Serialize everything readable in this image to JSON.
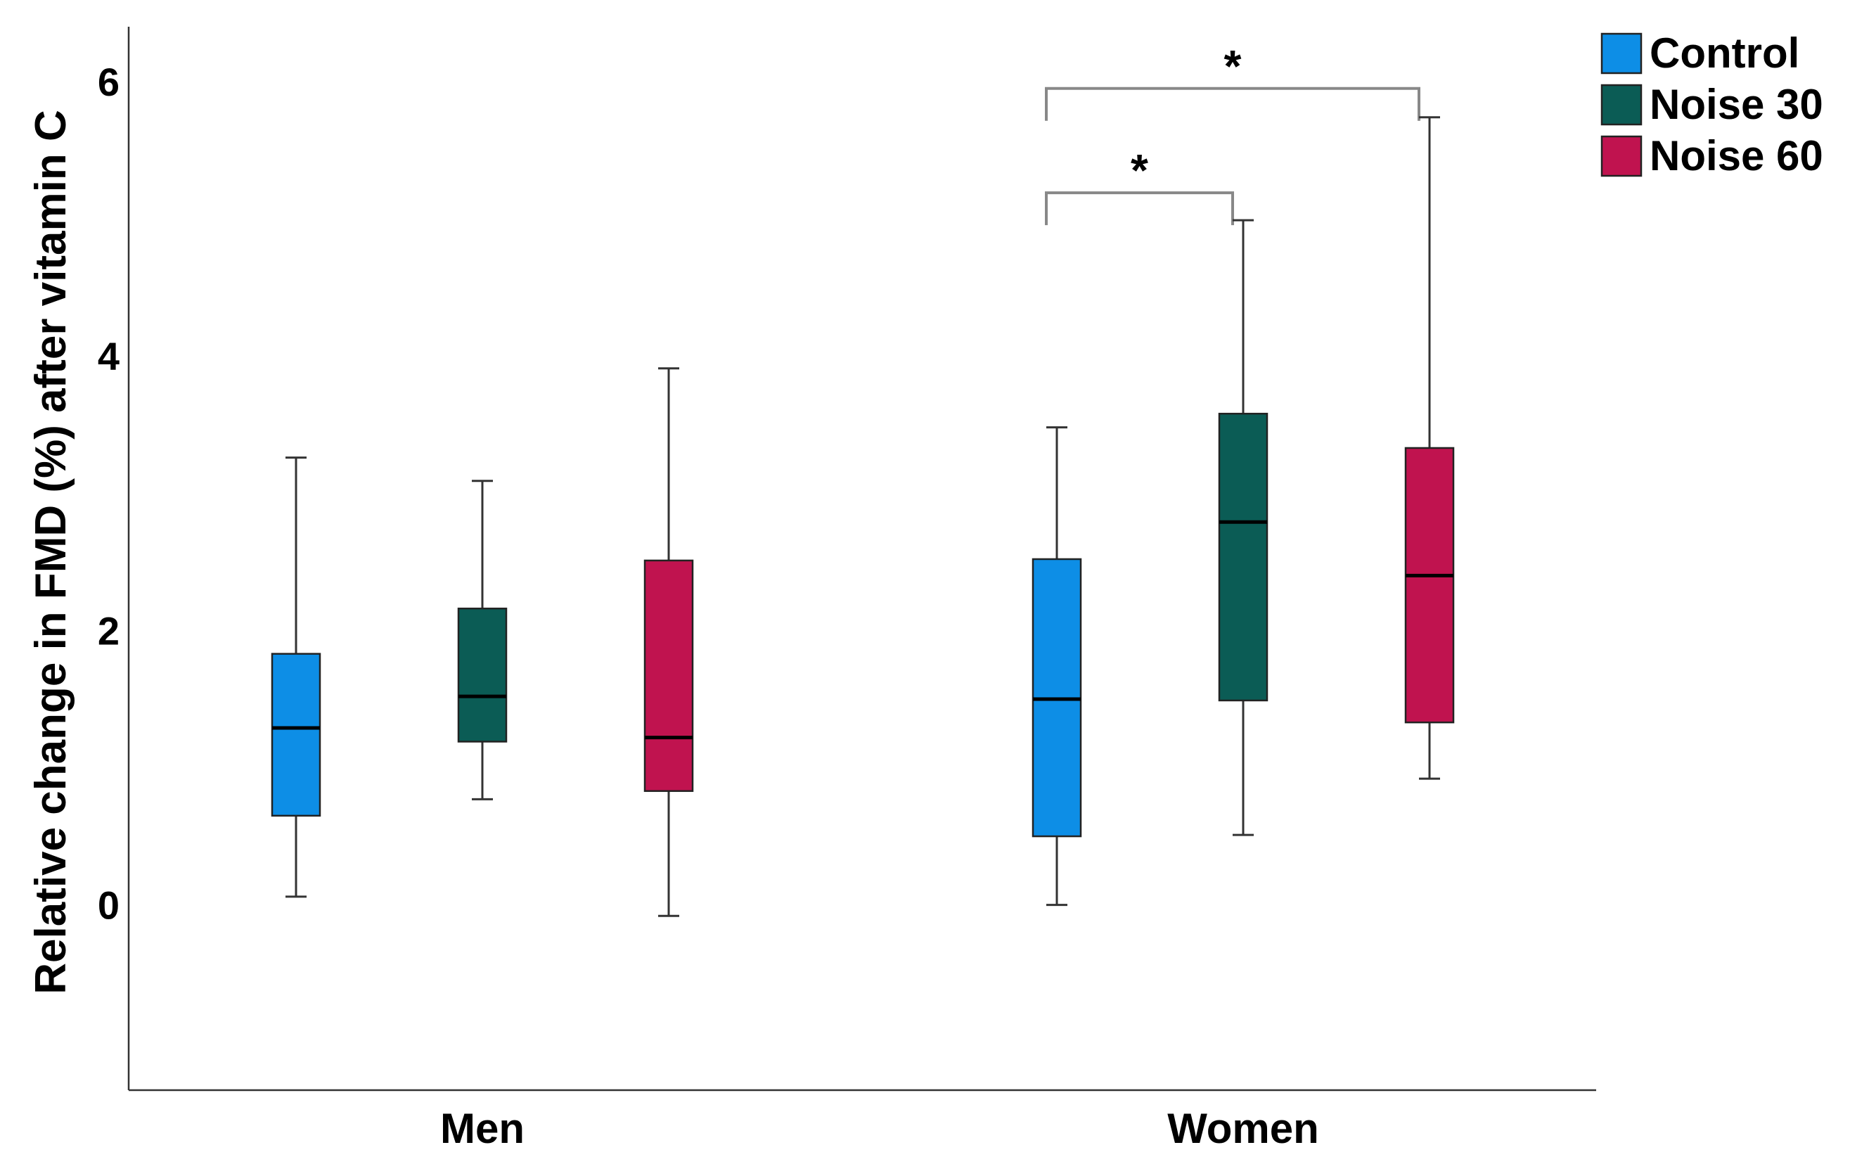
{
  "chart_data": {
    "type": "boxplot",
    "title": "",
    "xlabel": "",
    "ylabel": "Relative change in FMD (%) after vitamin C",
    "ylim": [
      -1.35,
      6.4
    ],
    "yticks": [
      0,
      2,
      4,
      6
    ],
    "categories": [
      "Men",
      "Women"
    ],
    "series": [
      {
        "name": "Control",
        "color": "#0d8ee6",
        "boxes": [
          {
            "category": "Men",
            "min": 0.06,
            "q1": 0.65,
            "median": 1.29,
            "q3": 1.83,
            "max": 3.26
          },
          {
            "category": "Women",
            "min": 0.0,
            "q1": 0.5,
            "median": 1.5,
            "q3": 2.52,
            "max": 3.48
          }
        ]
      },
      {
        "name": "Noise 30",
        "color": "#0b5c55",
        "boxes": [
          {
            "category": "Men",
            "min": 0.77,
            "q1": 1.19,
            "median": 1.52,
            "q3": 2.16,
            "max": 3.09
          },
          {
            "category": "Women",
            "min": 0.51,
            "q1": 1.49,
            "median": 2.79,
            "q3": 3.58,
            "max": 4.99
          }
        ]
      },
      {
        "name": "Noise 60",
        "color": "#c0134f",
        "boxes": [
          {
            "category": "Men",
            "min": -0.08,
            "q1": 0.83,
            "median": 1.22,
            "q3": 2.51,
            "max": 3.91
          },
          {
            "category": "Women",
            "min": 0.92,
            "q1": 1.33,
            "median": 2.4,
            "q3": 3.33,
            "max": 5.74
          }
        ]
      }
    ],
    "annotations": [
      {
        "label": "*",
        "category": "Women",
        "from": "Control",
        "to": "Noise 30",
        "y": 5.19
      },
      {
        "label": "*",
        "category": "Women",
        "from": "Control",
        "to": "Noise 60",
        "y": 5.95
      }
    ],
    "legend_position": "top-right",
    "grid": false
  }
}
